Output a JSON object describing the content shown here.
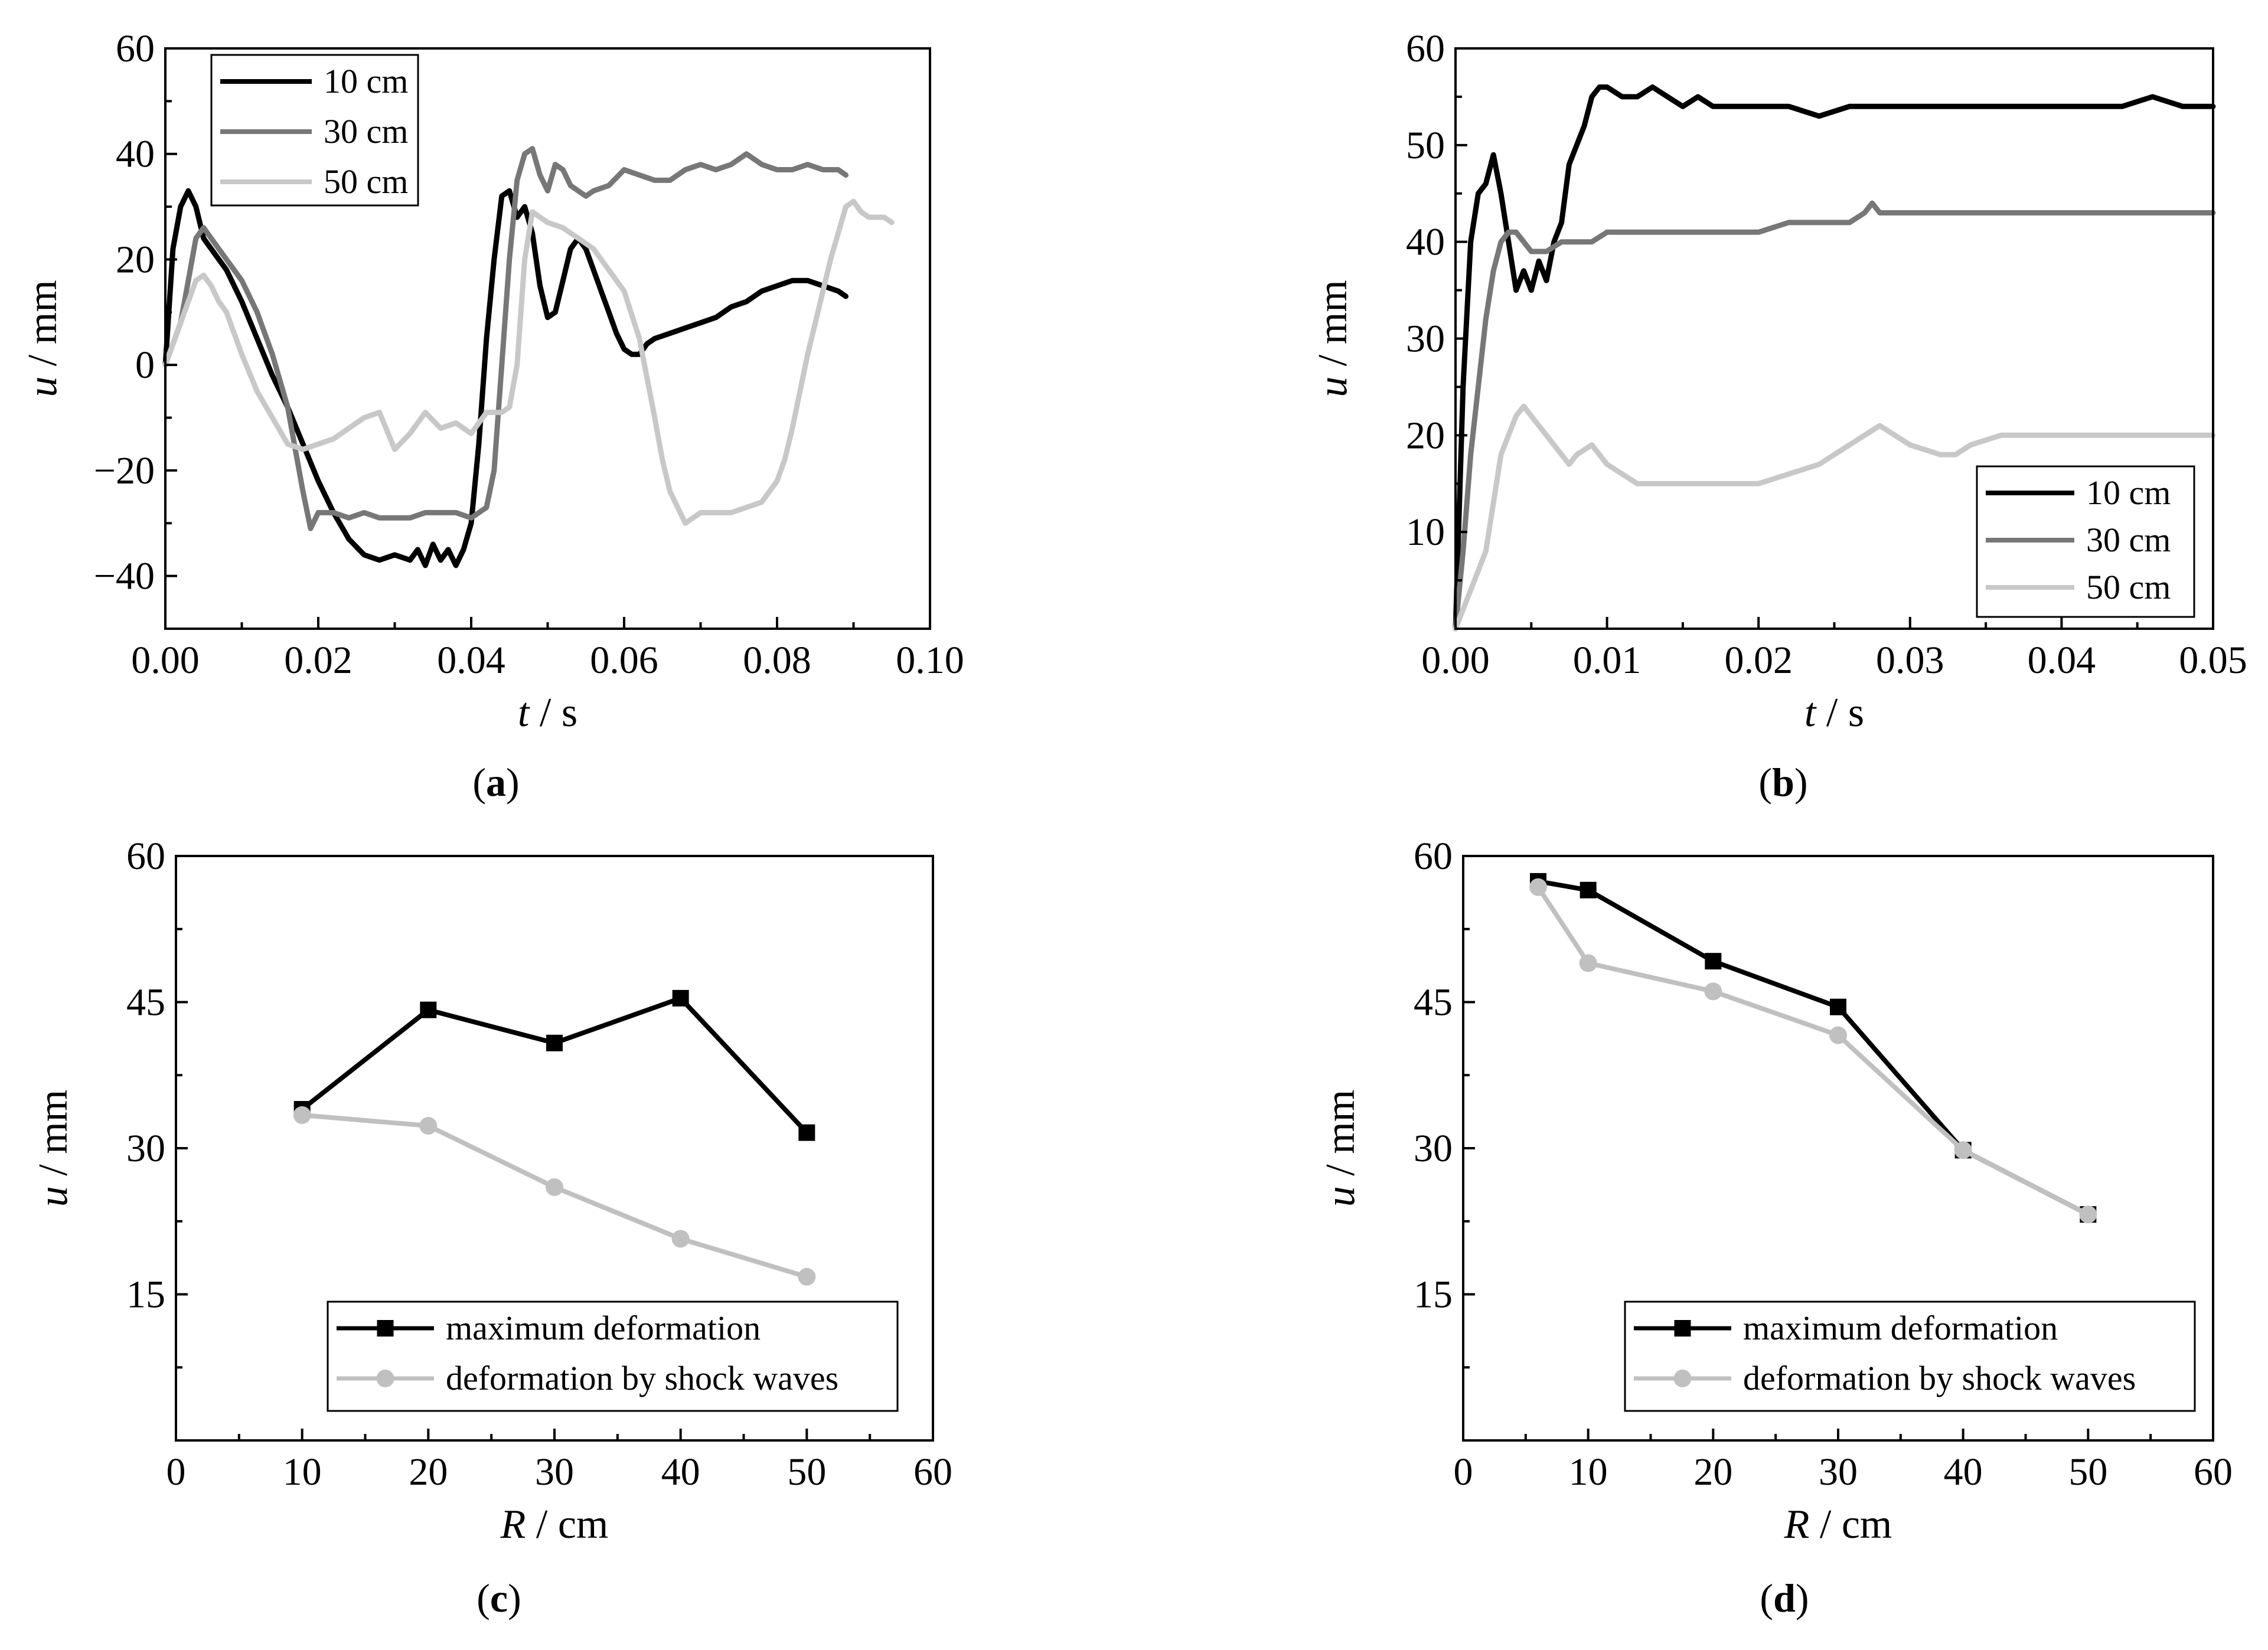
{
  "chart_data": [
    {
      "id": "a",
      "type": "line",
      "panel_label": "a",
      "xlabel_var": "t",
      "xlabel_unit": " / s",
      "ylabel_var": "u",
      "ylabel_unit": " / mm",
      "xlim": [
        0,
        0.1
      ],
      "ylim": [
        -50,
        60
      ],
      "xticks": [
        0,
        0.02,
        0.04,
        0.06,
        0.08,
        0.1
      ],
      "xtick_labels": [
        "0.00",
        "0.02",
        "0.04",
        "0.06",
        "0.08",
        "0.10"
      ],
      "yticks": [
        -40,
        -20,
        0,
        20,
        40,
        60
      ],
      "ytick_labels": [
        "−40",
        "−20",
        "0",
        "20",
        "40",
        "60"
      ],
      "legend_position": "top-left",
      "series": [
        {
          "name": "10 cm",
          "color": "#000000",
          "x": [
            0,
            0.001,
            0.002,
            0.003,
            0.004,
            0.005,
            0.006,
            0.008,
            0.01,
            0.012,
            0.014,
            0.016,
            0.018,
            0.02,
            0.022,
            0.024,
            0.026,
            0.028,
            0.03,
            0.032,
            0.033,
            0.034,
            0.035,
            0.036,
            0.037,
            0.038,
            0.039,
            0.04,
            0.041,
            0.042,
            0.043,
            0.044,
            0.045,
            0.046,
            0.047,
            0.048,
            0.049,
            0.05,
            0.051,
            0.052,
            0.053,
            0.054,
            0.055,
            0.056,
            0.057,
            0.058,
            0.059,
            0.06,
            0.061,
            0.062,
            0.063,
            0.064,
            0.066,
            0.068,
            0.07,
            0.072,
            0.074,
            0.076,
            0.078,
            0.08,
            0.082,
            0.084,
            0.086,
            0.088,
            0.089
          ],
          "y": [
            0,
            22,
            30,
            33,
            30,
            24,
            22,
            18,
            12,
            5,
            -2,
            -8,
            -15,
            -22,
            -28,
            -33,
            -36,
            -37,
            -36,
            -37,
            -35,
            -38,
            -34,
            -37,
            -35,
            -38,
            -35,
            -30,
            -15,
            5,
            20,
            32,
            33,
            28,
            30,
            25,
            15,
            9,
            10,
            16,
            22,
            24,
            22,
            18,
            14,
            10,
            6,
            3,
            2,
            2,
            4,
            5,
            6,
            7,
            8,
            9,
            11,
            12,
            14,
            15,
            16,
            16,
            15,
            14,
            13
          ]
        },
        {
          "name": "30 cm",
          "color": "#777777",
          "x": [
            0,
            0.002,
            0.003,
            0.004,
            0.005,
            0.006,
            0.007,
            0.008,
            0.009,
            0.01,
            0.012,
            0.014,
            0.016,
            0.017,
            0.018,
            0.019,
            0.02,
            0.022,
            0.024,
            0.026,
            0.028,
            0.03,
            0.032,
            0.034,
            0.036,
            0.038,
            0.04,
            0.042,
            0.043,
            0.044,
            0.045,
            0.046,
            0.047,
            0.048,
            0.049,
            0.05,
            0.051,
            0.052,
            0.053,
            0.054,
            0.055,
            0.056,
            0.058,
            0.06,
            0.062,
            0.064,
            0.066,
            0.068,
            0.07,
            0.072,
            0.074,
            0.076,
            0.078,
            0.08,
            0.082,
            0.084,
            0.086,
            0.088,
            0.089
          ],
          "y": [
            0,
            8,
            16,
            24,
            26,
            24,
            22,
            20,
            18,
            16,
            10,
            2,
            -8,
            -16,
            -24,
            -31,
            -28,
            -28,
            -29,
            -28,
            -29,
            -29,
            -29,
            -28,
            -28,
            -28,
            -29,
            -27,
            -20,
            0,
            20,
            35,
            40,
            41,
            36,
            33,
            38,
            37,
            34,
            33,
            32,
            33,
            34,
            37,
            36,
            35,
            35,
            37,
            38,
            37,
            38,
            40,
            38,
            37,
            37,
            38,
            37,
            37,
            36
          ]
        },
        {
          "name": "50 cm",
          "color": "#c8c8c8",
          "x": [
            0,
            0.001,
            0.002,
            0.003,
            0.004,
            0.005,
            0.006,
            0.007,
            0.008,
            0.009,
            0.01,
            0.012,
            0.014,
            0.016,
            0.018,
            0.02,
            0.022,
            0.024,
            0.026,
            0.028,
            0.03,
            0.032,
            0.034,
            0.036,
            0.038,
            0.04,
            0.042,
            0.044,
            0.045,
            0.046,
            0.047,
            0.048,
            0.049,
            0.05,
            0.052,
            0.054,
            0.056,
            0.058,
            0.06,
            0.062,
            0.064,
            0.065,
            0.066,
            0.067,
            0.068,
            0.07,
            0.072,
            0.074,
            0.076,
            0.078,
            0.08,
            0.081,
            0.082,
            0.083,
            0.084,
            0.085,
            0.086,
            0.087,
            0.088,
            0.089,
            0.09,
            0.091,
            0.092,
            0.093,
            0.094,
            0.095
          ],
          "y": [
            0,
            4,
            8,
            12,
            16,
            17,
            15,
            12,
            10,
            6,
            2,
            -5,
            -10,
            -15,
            -16,
            -15,
            -14,
            -12,
            -10,
            -9,
            -16,
            -13,
            -9,
            -12,
            -11,
            -13,
            -9,
            -9,
            -8,
            0,
            20,
            29,
            28,
            27,
            26,
            24,
            22,
            18,
            14,
            5,
            -10,
            -18,
            -24,
            -27,
            -30,
            -28,
            -28,
            -28,
            -27,
            -26,
            -22,
            -18,
            -12,
            -5,
            2,
            8,
            14,
            20,
            25,
            30,
            31,
            29,
            28,
            28,
            28,
            27
          ]
        }
      ]
    },
    {
      "id": "b",
      "type": "line",
      "panel_label": "b",
      "xlabel_var": "t",
      "xlabel_unit": " / s",
      "ylabel_var": "u",
      "ylabel_unit": " / mm",
      "xlim": [
        0,
        0.05
      ],
      "ylim": [
        0,
        60
      ],
      "xticks": [
        0,
        0.01,
        0.02,
        0.03,
        0.04,
        0.05
      ],
      "xtick_labels": [
        "0.00",
        "0.01",
        "0.02",
        "0.03",
        "0.04",
        "0.05"
      ],
      "yticks": [
        10,
        20,
        30,
        40,
        50,
        60
      ],
      "ytick_labels": [
        "10",
        "20",
        "30",
        "40",
        "50",
        "60"
      ],
      "legend_position": "bottom-right",
      "series": [
        {
          "name": "10 cm",
          "color": "#000000",
          "x": [
            0,
            0.0005,
            0.001,
            0.0015,
            0.002,
            0.0025,
            0.003,
            0.0035,
            0.004,
            0.0045,
            0.005,
            0.0055,
            0.006,
            0.0065,
            0.007,
            0.0075,
            0.008,
            0.0085,
            0.009,
            0.0095,
            0.01,
            0.011,
            0.012,
            0.013,
            0.014,
            0.015,
            0.016,
            0.017,
            0.018,
            0.019,
            0.02,
            0.022,
            0.024,
            0.026,
            0.028,
            0.03,
            0.032,
            0.034,
            0.036,
            0.038,
            0.04,
            0.042,
            0.044,
            0.046,
            0.048,
            0.05
          ],
          "y": [
            0,
            25,
            40,
            45,
            46,
            49,
            45,
            40,
            35,
            37,
            35,
            38,
            36,
            40,
            42,
            48,
            50,
            52,
            55,
            56,
            56,
            55,
            55,
            56,
            55,
            54,
            55,
            54,
            54,
            54,
            54,
            54,
            53,
            54,
            54,
            54,
            54,
            54,
            54,
            54,
            54,
            54,
            54,
            55,
            54,
            54
          ]
        },
        {
          "name": "30 cm",
          "color": "#777777",
          "x": [
            0,
            0.0005,
            0.001,
            0.0015,
            0.002,
            0.0025,
            0.003,
            0.0035,
            0.004,
            0.0045,
            0.005,
            0.0055,
            0.006,
            0.007,
            0.008,
            0.009,
            0.01,
            0.011,
            0.012,
            0.014,
            0.016,
            0.018,
            0.02,
            0.022,
            0.024,
            0.026,
            0.027,
            0.0275,
            0.028,
            0.03,
            0.032,
            0.034,
            0.036,
            0.038,
            0.04,
            0.042,
            0.044,
            0.046,
            0.048,
            0.05
          ],
          "y": [
            0,
            8,
            18,
            25,
            32,
            37,
            40,
            41,
            41,
            40,
            39,
            39,
            39,
            40,
            40,
            40,
            41,
            41,
            41,
            41,
            41,
            41,
            41,
            42,
            42,
            42,
            43,
            44,
            43,
            43,
            43,
            43,
            43,
            43,
            43,
            43,
            43,
            43,
            43,
            43
          ]
        },
        {
          "name": "50 cm",
          "color": "#c8c8c8",
          "x": [
            0,
            0.0005,
            0.001,
            0.0015,
            0.002,
            0.0025,
            0.003,
            0.0035,
            0.004,
            0.0045,
            0.005,
            0.0055,
            0.006,
            0.0065,
            0.007,
            0.0075,
            0.008,
            0.009,
            0.01,
            0.011,
            0.012,
            0.014,
            0.016,
            0.018,
            0.02,
            0.022,
            0.024,
            0.026,
            0.027,
            0.028,
            0.029,
            0.03,
            0.032,
            0.033,
            0.034,
            0.036,
            0.038,
            0.04,
            0.042,
            0.044,
            0.046,
            0.048,
            0.05
          ],
          "y": [
            0,
            2,
            4,
            6,
            8,
            13,
            18,
            20,
            22,
            23,
            22,
            21,
            20,
            19,
            18,
            17,
            18,
            19,
            17,
            16,
            15,
            15,
            15,
            15,
            15,
            16,
            17,
            19,
            20,
            21,
            20,
            19,
            18,
            18,
            19,
            20,
            20,
            20,
            20,
            20,
            20,
            20,
            20
          ]
        }
      ]
    },
    {
      "id": "c",
      "type": "line",
      "panel_label": "c",
      "xlabel_var": "R",
      "xlabel_unit": " / cm",
      "ylabel_var": "u",
      "ylabel_unit": " / mm",
      "xlim": [
        0,
        60
      ],
      "ylim": [
        0,
        60
      ],
      "xticks": [
        0,
        10,
        20,
        30,
        40,
        50,
        60
      ],
      "xtick_labels": [
        "0",
        "10",
        "20",
        "30",
        "40",
        "50",
        "60"
      ],
      "yticks": [
        15,
        30,
        45,
        60
      ],
      "ytick_labels": [
        "15",
        "30",
        "45",
        "60"
      ],
      "legend_position": "bottom-right",
      "series": [
        {
          "name": "maximum deformation",
          "color": "#000000",
          "marker": "square",
          "x": [
            10,
            20,
            30,
            40,
            50
          ],
          "y": [
            34,
            44.2,
            40.8,
            45.4,
            31.6
          ]
        },
        {
          "name": "deformation by shock waves",
          "color": "#c0c0c0",
          "marker": "circle",
          "x": [
            10,
            20,
            30,
            40,
            50
          ],
          "y": [
            33.4,
            32.3,
            26,
            20.7,
            16.8
          ]
        }
      ]
    },
    {
      "id": "d",
      "type": "line",
      "panel_label": "d",
      "xlabel_var": "R",
      "xlabel_unit": " / cm",
      "ylabel_var": "u",
      "ylabel_unit": " / mm",
      "xlim": [
        0,
        60
      ],
      "ylim": [
        0,
        60
      ],
      "xticks": [
        0,
        10,
        20,
        30,
        40,
        50,
        60
      ],
      "xtick_labels": [
        "0",
        "10",
        "20",
        "30",
        "40",
        "50",
        "60"
      ],
      "yticks": [
        15,
        30,
        45,
        60
      ],
      "ytick_labels": [
        "15",
        "30",
        "45",
        "60"
      ],
      "legend_position": "bottom-right",
      "series": [
        {
          "name": "maximum deformation",
          "color": "#000000",
          "marker": "square",
          "x": [
            6,
            10,
            20,
            30,
            40,
            50
          ],
          "y": [
            57.4,
            56.5,
            49.2,
            44.5,
            29.8,
            23.2
          ]
        },
        {
          "name": "deformation by shock waves",
          "color": "#c0c0c0",
          "marker": "circle",
          "x": [
            6,
            10,
            20,
            30,
            40,
            50
          ],
          "y": [
            56.8,
            49,
            46.1,
            41.6,
            29.8,
            23.2
          ]
        }
      ]
    }
  ]
}
